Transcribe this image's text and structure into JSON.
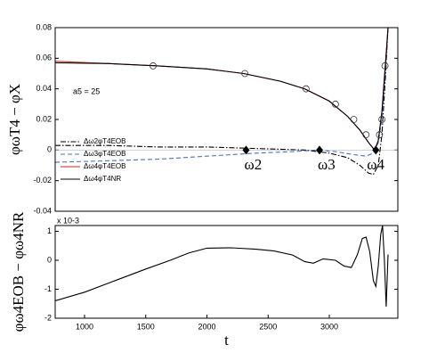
{
  "chart_data": [
    {
      "type": "line",
      "ylabel": "φωT4 − φX",
      "annotation": "a5 = 25",
      "xlim": [
        760,
        3560
      ],
      "ylim": [
        -0.04,
        0.08
      ],
      "yticks": [
        -0.04,
        -0.02,
        0,
        0.02,
        0.04,
        0.06,
        0.08
      ],
      "legend": "lower left",
      "series": [
        {
          "name": "Δω2φT4EOB",
          "color": "#000000",
          "style": "dashdot",
          "x": [
            760,
            1200,
            1600,
            2000,
            2400,
            2800,
            3000,
            3150,
            3250,
            3320,
            3360,
            3400,
            3430,
            3460,
            3480
          ],
          "values": [
            0.003,
            0.003,
            0.002,
            0.002,
            0.001,
            0.0,
            -0.002,
            -0.005,
            -0.01,
            -0.015,
            -0.016,
            -0.01,
            0.01,
            0.05,
            0.08
          ]
        },
        {
          "name": "Δω3φT4EOB",
          "color": "#4a6fd0",
          "style": "dashed",
          "x": [
            760,
            1200,
            1600,
            2000,
            2400,
            2700,
            2900,
            3050,
            3200,
            3300,
            3360,
            3400,
            3430,
            3460,
            3480
          ],
          "values": [
            -0.008,
            -0.007,
            -0.006,
            -0.004,
            -0.002,
            -0.001,
            0.0,
            -0.001,
            -0.003,
            -0.004,
            -0.002,
            0.005,
            0.02,
            0.055,
            0.08
          ]
        },
        {
          "name": "Δω4φT4EOB",
          "color": "#d42020",
          "style": "solid",
          "x": [
            760,
            1200,
            1600,
            2000,
            2300,
            2600,
            2800,
            3000,
            3150,
            3250,
            3320,
            3370,
            3400,
            3430,
            3460,
            3480
          ],
          "values": [
            0.058,
            0.0565,
            0.055,
            0.053,
            0.05,
            0.045,
            0.04,
            0.032,
            0.022,
            0.013,
            0.005,
            0.0,
            0.006,
            0.025,
            0.058,
            0.08
          ]
        },
        {
          "name": "Δω4φT4NR",
          "color": "#000000",
          "style": "solid",
          "x": [
            760,
            1200,
            1600,
            2000,
            2300,
            2600,
            2800,
            3000,
            3150,
            3250,
            3320,
            3370,
            3400,
            3430,
            3460,
            3480
          ],
          "values": [
            0.057,
            0.0565,
            0.055,
            0.053,
            0.05,
            0.045,
            0.04,
            0.032,
            0.022,
            0.013,
            0.005,
            0.0,
            0.006,
            0.025,
            0.058,
            0.08
          ]
        }
      ],
      "circles": {
        "x": [
          1560,
          2310,
          2810,
          3050,
          3200,
          3300,
          3410,
          3430,
          3455
        ],
        "y": [
          0.055,
          0.05,
          0.04,
          0.03,
          0.02,
          0.01,
          0.01,
          0.02,
          0.055
        ]
      },
      "points": {
        "x": [
          2320,
          2920,
          3380
        ],
        "y": [
          0,
          0,
          0
        ],
        "labels": [
          "ω2",
          "ω3",
          "ω4"
        ]
      }
    },
    {
      "type": "line",
      "ylabel": "φω4EOB − φω4NR",
      "xlabel": "t",
      "multiplier": "x 10-3",
      "xlim": [
        760,
        3560
      ],
      "ylim": [
        -2,
        1.2
      ],
      "xticks": [
        1000,
        1500,
        2000,
        2500,
        3000
      ],
      "yticks": [
        -2,
        -1,
        0,
        1
      ],
      "series": [
        {
          "color": "#000000",
          "style": "solid",
          "x": [
            760,
            1000,
            1250,
            1500,
            1700,
            1850,
            2000,
            2200,
            2400,
            2550,
            2700,
            2800,
            2870,
            2950,
            3050,
            3120,
            3180,
            3230,
            3270,
            3300,
            3330,
            3360,
            3380,
            3400,
            3420,
            3435,
            3450,
            3465,
            3480
          ],
          "values": [
            -1.4,
            -1.1,
            -0.7,
            -0.3,
            0.0,
            0.25,
            0.42,
            0.43,
            0.38,
            0.32,
            0.18,
            -0.05,
            -0.1,
            0.05,
            0.0,
            -0.2,
            -0.25,
            0.2,
            0.75,
            0.8,
            0.3,
            -0.7,
            -0.9,
            -0.2,
            0.9,
            1.2,
            0.0,
            -1.6,
            0.2
          ]
        }
      ]
    }
  ]
}
